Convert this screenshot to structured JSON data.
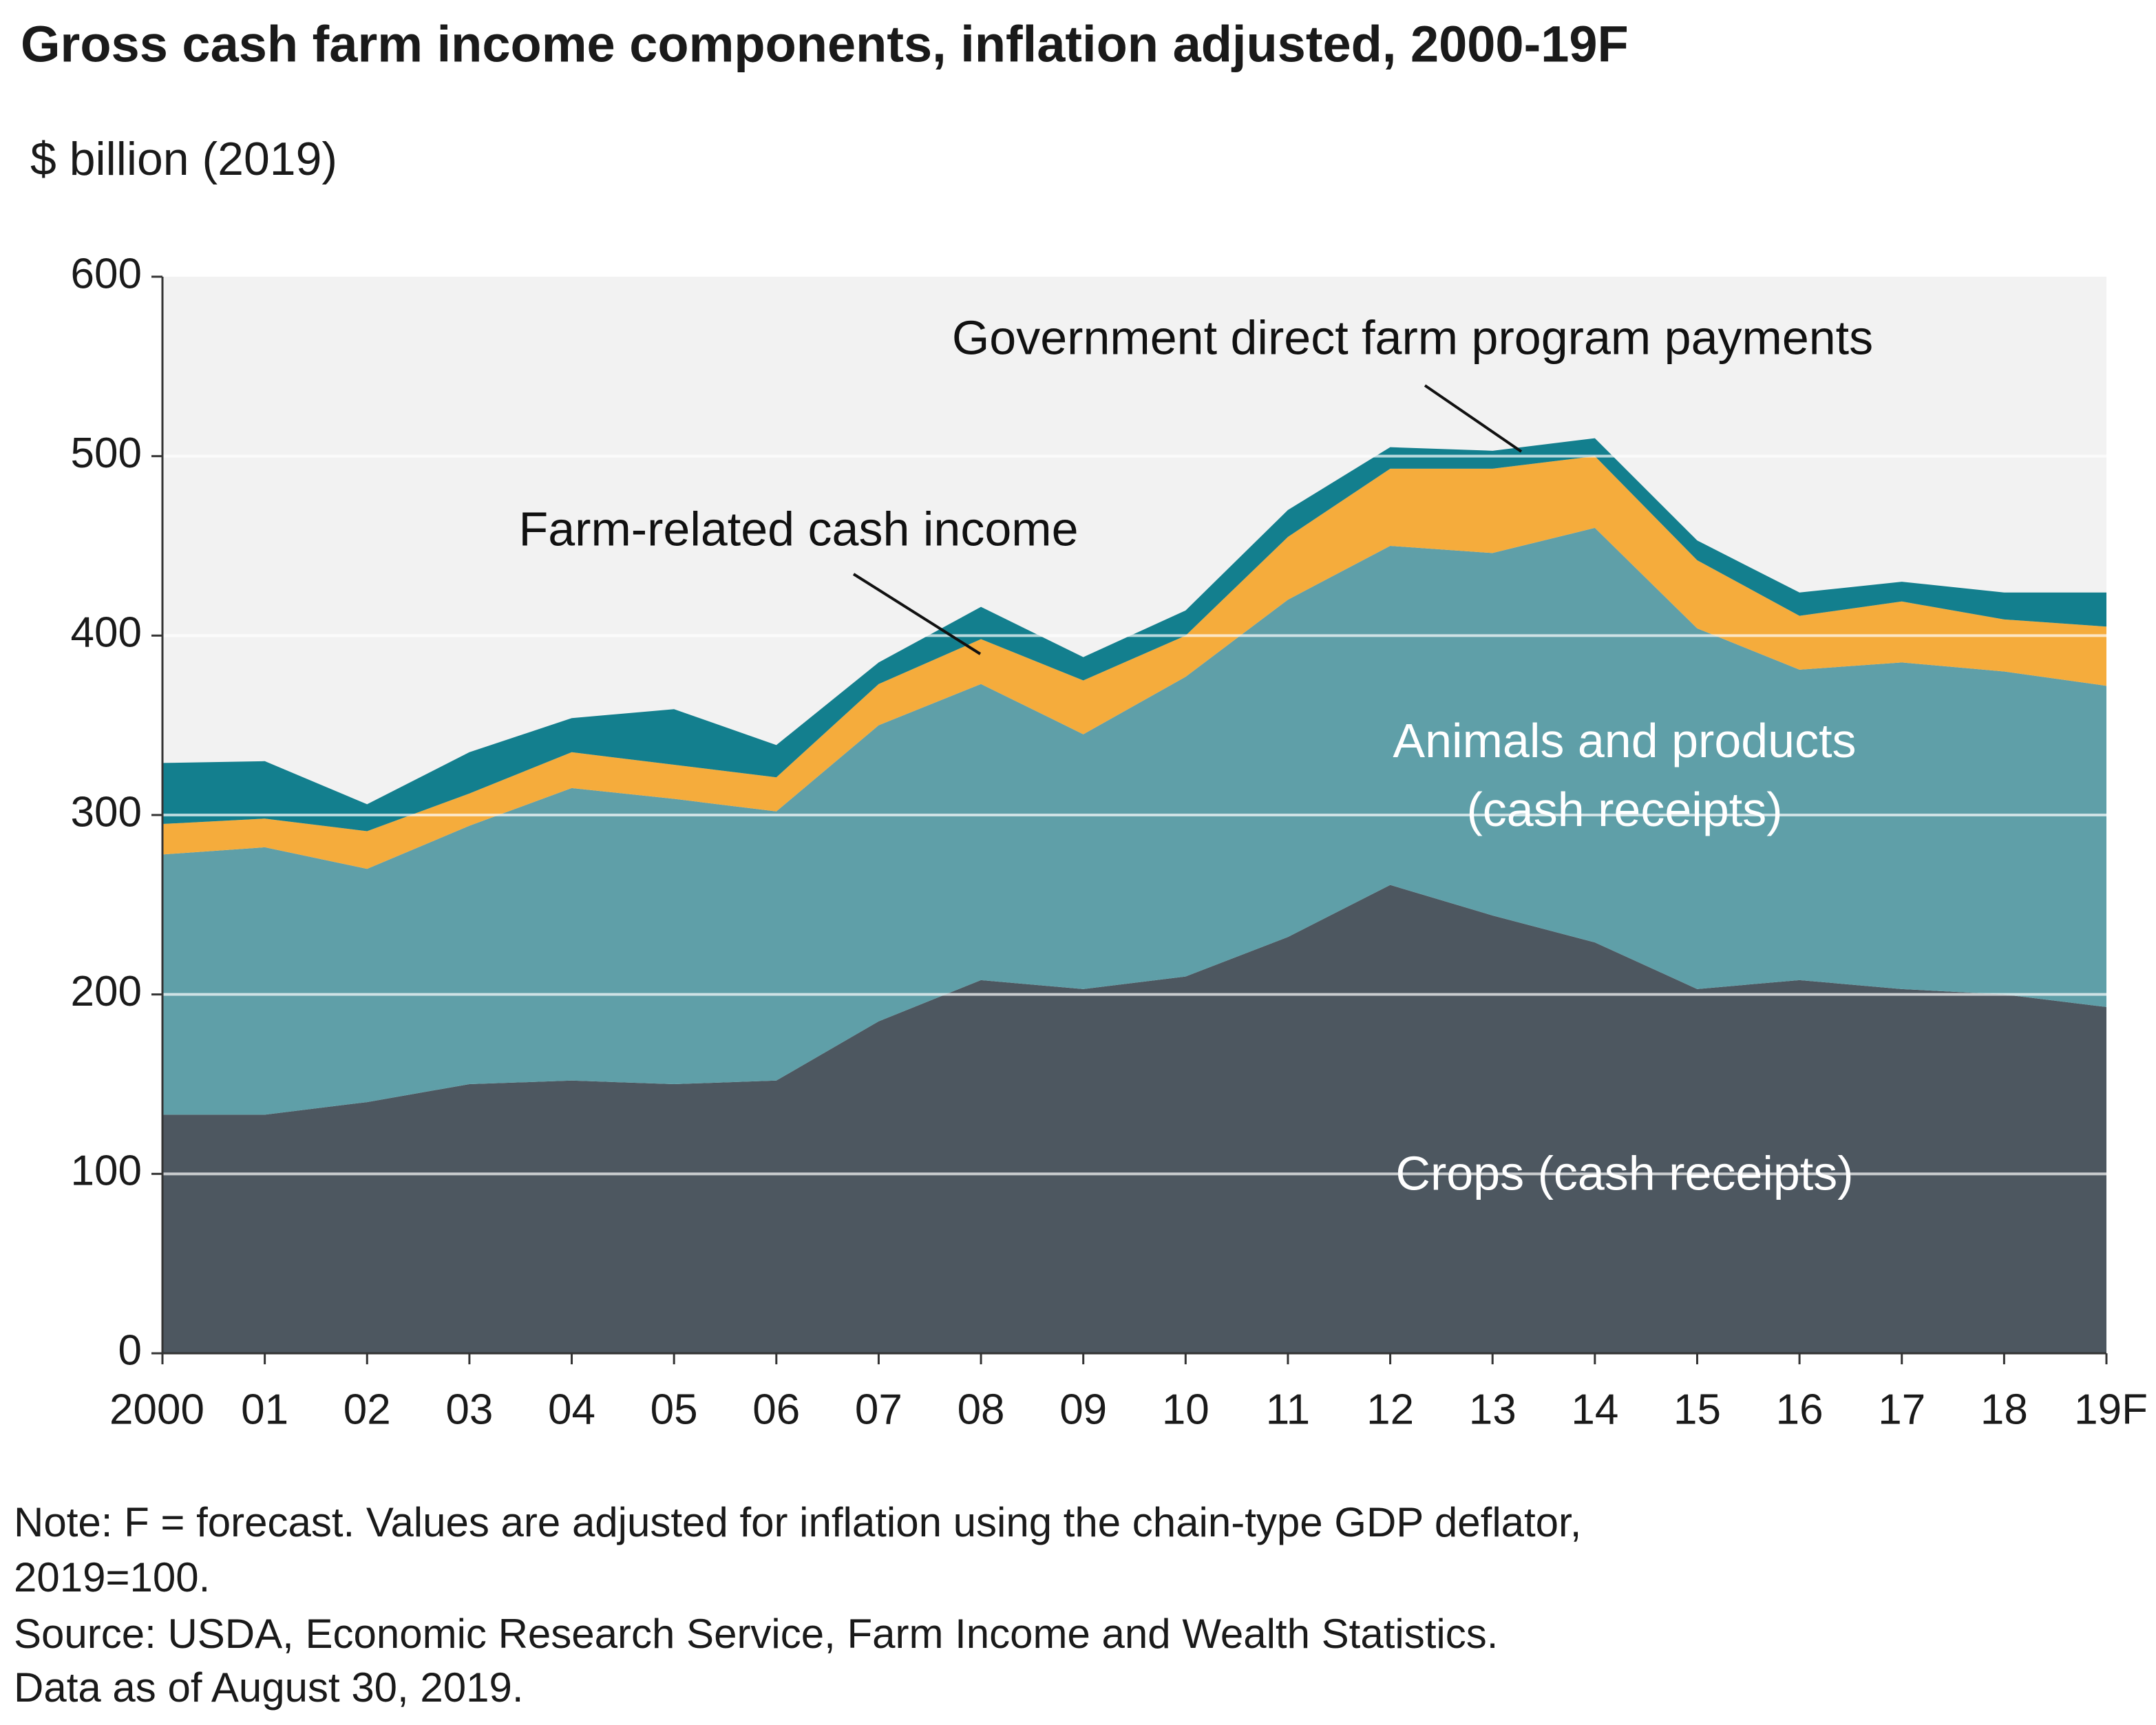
{
  "chart_data": {
    "type": "stacked-area",
    "title": "Gross cash farm income components, inflation adjusted, 2000-19F",
    "subtitle": "$ billion (2019)",
    "categories": [
      "2000",
      "01",
      "02",
      "03",
      "04",
      "05",
      "06",
      "07",
      "08",
      "09",
      "10",
      "11",
      "12",
      "13",
      "14",
      "15",
      "16",
      "17",
      "18",
      "19F"
    ],
    "series": [
      {
        "name": "Crops (cash receipts)",
        "color": "#4d5760",
        "values": [
          133,
          133,
          140,
          150,
          152,
          150,
          152,
          185,
          208,
          203,
          210,
          232,
          261,
          244,
          229,
          203,
          208,
          203,
          200,
          193
        ]
      },
      {
        "name": "Animals and products (cash receipts)",
        "color": "#5f9fa8",
        "values": [
          145,
          149,
          130,
          144,
          163,
          159,
          150,
          165,
          165,
          142,
          167,
          188,
          189,
          202,
          231,
          201,
          173,
          182,
          180,
          179
        ]
      },
      {
        "name": "Farm-related cash income",
        "color": "#f5ac3c",
        "values": [
          17,
          16,
          21,
          18,
          20,
          19,
          19,
          23,
          25,
          30,
          23,
          35,
          43,
          47,
          40,
          38,
          30,
          34,
          29,
          33
        ]
      },
      {
        "name": "Government direct farm program payments",
        "color": "#137f8e",
        "values": [
          34,
          32,
          15,
          23,
          19,
          31,
          18,
          12,
          18,
          13,
          14,
          15,
          12,
          10,
          10,
          11,
          13,
          11,
          15,
          19
        ]
      }
    ],
    "ylim": [
      0,
      600
    ],
    "yticks": [
      0,
      100,
      200,
      300,
      400,
      500,
      600
    ],
    "grid": true,
    "notes": [
      "Note: F = forecast. Values are adjusted for inflation using the chain-type GDP deflator,",
      "2019=100.",
      "Source: USDA, Economic Research Service, Farm Income and Wealth Statistics.",
      "Data as of August 30, 2019."
    ]
  }
}
